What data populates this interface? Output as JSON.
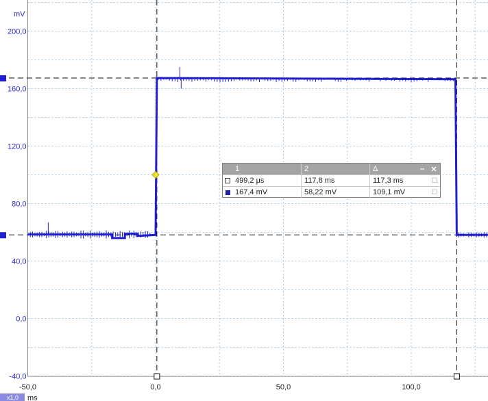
{
  "chart_data": {
    "type": "line",
    "ylabel": "mV",
    "xlabel": "ms",
    "xlim": [
      -50,
      130
    ],
    "ylim": [
      -40,
      210
    ],
    "x_ticks": [
      -50,
      0,
      50,
      100
    ],
    "x_tick_labels": [
      "-50,0",
      "0,0",
      "50,0",
      "100,0"
    ],
    "y_ticks": [
      -40,
      0,
      40,
      80,
      120,
      160,
      200
    ],
    "y_tick_labels": [
      "-40,0",
      "0,0",
      "40,0",
      "80,0",
      "120,0",
      "160,0",
      "200,0"
    ],
    "grid": true,
    "x_scale_badge": "x1,0",
    "series": [
      {
        "color": "#1f1fd0",
        "x": [
          -50,
          -17,
          -17,
          -12,
          -12,
          -7,
          -7,
          0,
          0.5,
          117.3,
          117.8,
          130
        ],
        "y": [
          58.5,
          58.5,
          56,
          56,
          59,
          59,
          57.5,
          58.2,
          167.4,
          166.5,
          58.2,
          58.2
        ]
      }
    ],
    "cursors": {
      "vertical": [
        {
          "x": 0.5
        },
        {
          "x": 117.8
        }
      ],
      "horizontal": [
        {
          "y": 167.4
        },
        {
          "y": 58.22
        }
      ],
      "trigger_marker": {
        "x": 0,
        "y": 100
      }
    }
  },
  "measurement_table": {
    "headers": [
      "1",
      "2",
      "Δ"
    ],
    "rows": [
      {
        "c1": "499,2 µs",
        "c2": "117,8 ms",
        "c3": "117,3 ms"
      },
      {
        "c1": "167,4 mV",
        "c2": "58,22 mV",
        "c3": "109,1 mV"
      }
    ],
    "minimize_glyph": "‒",
    "close_glyph": "✕",
    "lock_glyph": "🔓"
  },
  "colors": {
    "trace": "#1f1fd0",
    "grid": "#a8c8e0",
    "axis_label": "#2b2bcf",
    "trigger": "#f0e040",
    "badge_bg": "#8a8ae0"
  }
}
